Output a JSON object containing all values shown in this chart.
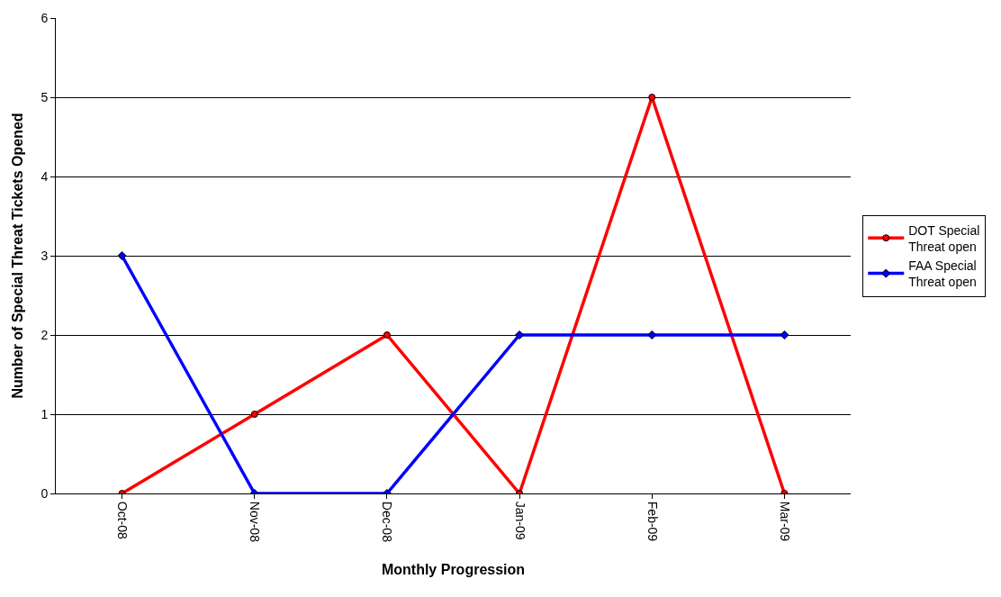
{
  "chart_data": {
    "type": "line",
    "xlabel": "Monthly Progression",
    "ylabel": "Number of Special Threat Tickets Opened",
    "categories": [
      "Oct-08",
      "Nov-08",
      "Dec-08",
      "Jan-09",
      "Feb-09",
      "Mar-09"
    ],
    "series": [
      {
        "name": "DOT Special Threat open",
        "color": "#ff0000",
        "values": [
          0,
          1,
          2,
          0,
          5,
          0
        ],
        "marker": "circle"
      },
      {
        "name": "FAA Special Threat open",
        "color": "#0000ff",
        "values": [
          3,
          0,
          0,
          2,
          2,
          2
        ],
        "marker": "diamond"
      }
    ],
    "ylim": [
      0,
      6
    ],
    "yticks": [
      0,
      1,
      2,
      3,
      4,
      5,
      6
    ],
    "grid": "y",
    "legend": "right",
    "line_style": "solid"
  }
}
